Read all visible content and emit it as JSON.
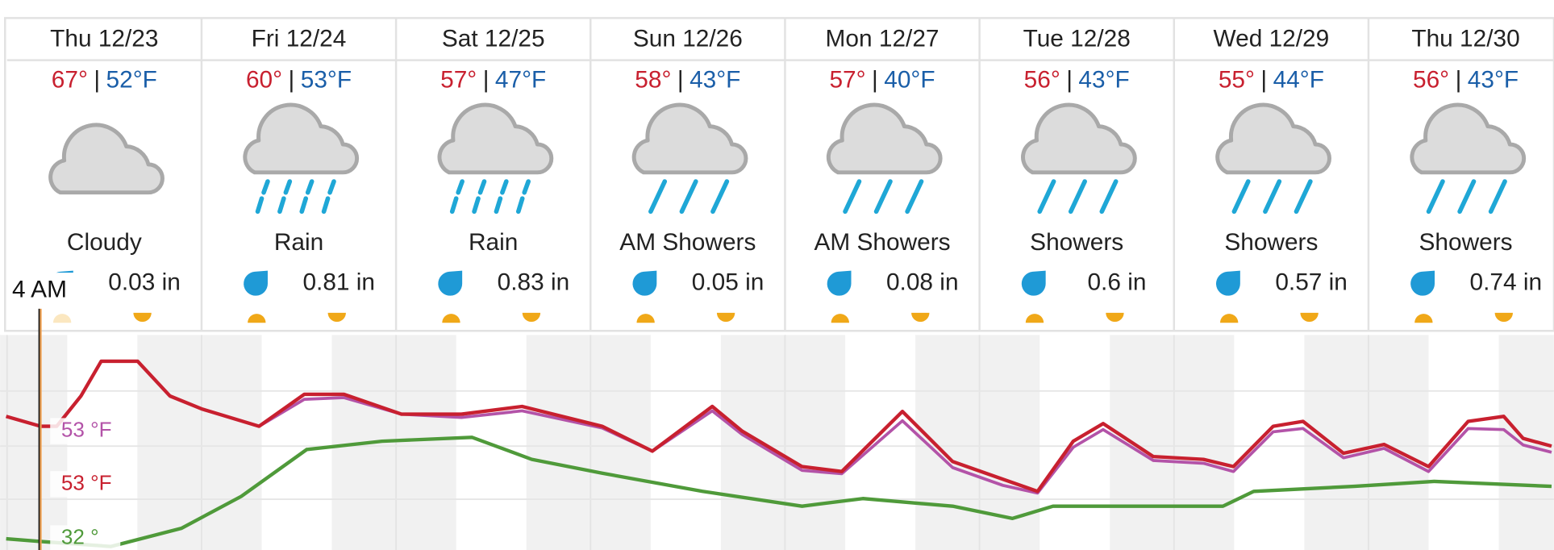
{
  "days": [
    {
      "date": "Thu 12/23",
      "high": "67°",
      "low": "52°F",
      "condition": "Cloudy",
      "precip": "0.03 in"
    },
    {
      "date": "Fri 12/24",
      "high": "60°",
      "low": "53°F",
      "condition": "Rain",
      "precip": "0.81 in"
    },
    {
      "date": "Sat 12/25",
      "high": "57°",
      "low": "47°F",
      "condition": "Rain",
      "precip": "0.83 in"
    },
    {
      "date": "Sun 12/26",
      "high": "58°",
      "low": "43°F",
      "condition": "AM Showers",
      "precip": "0.05 in"
    },
    {
      "date": "Mon 12/27",
      "high": "57°",
      "low": "40°F",
      "condition": "AM Showers",
      "precip": "0.08 in"
    },
    {
      "date": "Tue 12/28",
      "high": "56°",
      "low": "43°F",
      "condition": "Showers",
      "precip": "0.6 in"
    },
    {
      "date": "Wed 12/29",
      "high": "55°",
      "low": "44°F",
      "condition": "Showers",
      "precip": "0.57 in"
    },
    {
      "date": "Thu 12/30",
      "high": "56°",
      "low": "43°F",
      "condition": "Showers",
      "precip": "0.74 in"
    }
  ],
  "temp_separator": "|",
  "graph": {
    "type": "line",
    "xlim": [
      -1,
      191
    ],
    "ylim": [
      29.4,
      69.4
    ],
    "series": [
      {
        "color": "#b353a8",
        "x": [
          -0.25,
          4,
          6,
          9,
          11.5,
          16,
          20,
          24,
          31,
          36.6,
          41.5,
          48.6,
          56,
          63.5,
          73.4,
          79.6,
          87,
          90.7,
          98.1,
          103,
          110.5,
          116.7,
          122.9,
          127.2,
          131.6,
          135.3,
          141.5,
          147.7,
          151.4,
          156.3,
          160,
          165,
          170,
          175.5,
          180.4,
          184.8,
          187.2,
          190.7
        ],
        "values": [
          54.8,
          53,
          53,
          58.5,
          64.8,
          64.8,
          58.5,
          56.1,
          53,
          57.9,
          58.2,
          55.2,
          54.6,
          55.8,
          52.7,
          48.5,
          55.8,
          51.5,
          45,
          44.4,
          54,
          45.5,
          42.3,
          40.9,
          49.2,
          52.4,
          46.8,
          46.3,
          44.8,
          52,
          52.6,
          47.3,
          49,
          44.8,
          52.6,
          52.4,
          49.6,
          48.3
        ]
      },
      {
        "color": "#c8202f",
        "x": [
          -0.25,
          4,
          6,
          9,
          11.5,
          16,
          20,
          24,
          31,
          36.6,
          41.5,
          48.6,
          56,
          63.5,
          73.4,
          79.6,
          87,
          90.7,
          98.1,
          103,
          110.5,
          116.7,
          122.9,
          127.2,
          131.6,
          135.3,
          141.5,
          147.7,
          151.4,
          156.3,
          160,
          165,
          170,
          175.5,
          180.4,
          184.8,
          187.2,
          190.7
        ],
        "values": [
          54.8,
          53,
          53,
          58.5,
          64.8,
          64.8,
          58.5,
          56.1,
          53,
          58.8,
          58.8,
          55.2,
          55.2,
          56.6,
          53,
          48.5,
          56.6,
          52.1,
          45.7,
          44.8,
          55.7,
          46.6,
          43.4,
          41.2,
          50.3,
          53.5,
          47.5,
          47,
          45.7,
          53,
          53.9,
          48.1,
          49.7,
          45.7,
          53.9,
          54.8,
          50.8,
          49.4
        ]
      },
      {
        "color": "#4f9a3a",
        "x": [
          -0.25,
          4,
          12.7,
          21.4,
          28.8,
          36.9,
          46.2,
          57.3,
          64.7,
          73.4,
          85.8,
          98.1,
          105.6,
          116.7,
          124.1,
          129.1,
          150.1,
          153.9,
          166.3,
          176.2,
          190.7
        ],
        "values": [
          32.6,
          32.1,
          31.2,
          34.5,
          40.3,
          48.8,
          50.3,
          51,
          47,
          44.5,
          41.2,
          38.5,
          39.9,
          38.5,
          36.3,
          38.5,
          38.5,
          41.2,
          42.1,
          43,
          42.1
        ]
      }
    ],
    "cursor": {
      "label": "4 AM",
      "readouts": [
        "53 °F",
        "53 °F",
        "32 °"
      ]
    }
  }
}
